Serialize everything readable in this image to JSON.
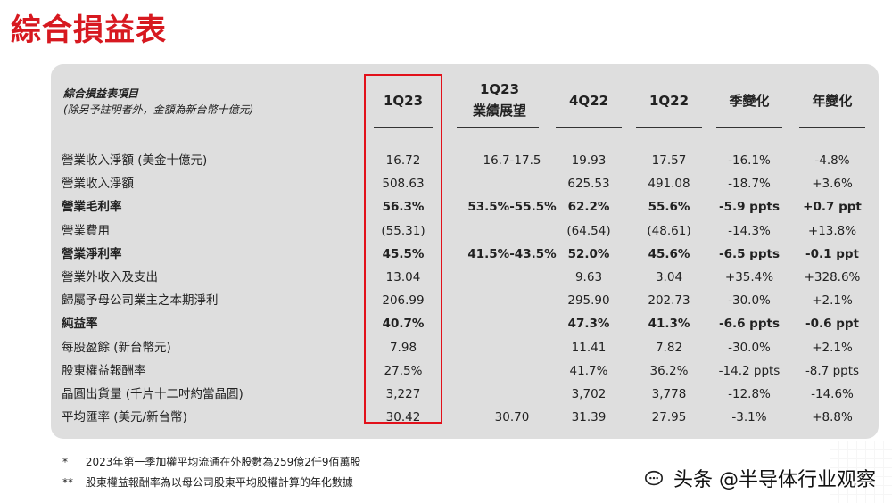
{
  "title": "綜合損益表",
  "header": {
    "label_line1": "綜合損益表項目",
    "label_line2": "(除另予註明者外，金額為新台幣十億元)",
    "columns": [
      {
        "line1": "1Q23",
        "line2": ""
      },
      {
        "line1": "1Q23",
        "line2": "業績展望"
      },
      {
        "line1": "4Q22",
        "line2": ""
      },
      {
        "line1": "1Q22",
        "line2": ""
      },
      {
        "line1": "季變化",
        "line2": ""
      },
      {
        "line1": "年變化",
        "line2": ""
      }
    ]
  },
  "rows": [
    {
      "label": "營業收入淨額 (美金十億元)",
      "bold": false,
      "cells": [
        "16.72",
        "16.7-17.5",
        "19.93",
        "17.57",
        "-16.1%",
        "-4.8%"
      ]
    },
    {
      "label": "營業收入淨額",
      "bold": false,
      "cells": [
        "508.63",
        "",
        "625.53",
        "491.08",
        "-18.7%",
        "+3.6%"
      ]
    },
    {
      "label": "營業毛利率",
      "bold": true,
      "cells": [
        "56.3%",
        "53.5%-55.5%",
        "62.2%",
        "55.6%",
        "-5.9 ppts",
        "+0.7 ppt"
      ]
    },
    {
      "label": "營業費用",
      "bold": false,
      "cells": [
        "(55.31)",
        "",
        "(64.54)",
        "(48.61)",
        "-14.3%",
        "+13.8%"
      ]
    },
    {
      "label": "營業淨利率",
      "bold": true,
      "cells": [
        "45.5%",
        "41.5%-43.5%",
        "52.0%",
        "45.6%",
        "-6.5 ppts",
        "-0.1 ppt"
      ]
    },
    {
      "label": "營業外收入及支出",
      "bold": false,
      "cells": [
        "13.04",
        "",
        "9.63",
        "3.04",
        "+35.4%",
        "+328.6%"
      ]
    },
    {
      "label": "歸屬予母公司業主之本期淨利",
      "bold": false,
      "cells": [
        "206.99",
        "",
        "295.90",
        "202.73",
        "-30.0%",
        "+2.1%"
      ]
    },
    {
      "label": "純益率",
      "bold": true,
      "cells": [
        "40.7%",
        "",
        "47.3%",
        "41.3%",
        "-6.6 ppts",
        "-0.6 ppt"
      ]
    },
    {
      "label": "每股盈餘 (新台幣元)",
      "bold": false,
      "cells": [
        "7.98",
        "",
        "11.41",
        "7.82",
        "-30.0%",
        "+2.1%"
      ]
    },
    {
      "label": "股東權益報酬率",
      "bold": false,
      "cells": [
        "27.5%",
        "",
        "41.7%",
        "36.2%",
        "-14.2 ppts",
        "-8.7 ppts"
      ]
    },
    {
      "label": "晶圓出貨量 (千片十二吋約當晶圓)",
      "bold": false,
      "cells": [
        "3,227",
        "",
        "3,702",
        "3,778",
        "-12.8%",
        "-14.6%"
      ]
    },
    {
      "label": "平均匯率 (美元/新台幣)",
      "bold": false,
      "cells": [
        "30.42",
        "30.70",
        "31.39",
        "27.95",
        "-3.1%",
        "+8.8%"
      ]
    }
  ],
  "footnotes": [
    {
      "mark": "*",
      "text": "2023年第一季加權平均流通在外股數為259億2仟9佰萬股"
    },
    {
      "mark": "**",
      "text": "股東權益報酬率為以母公司股東平均股權計算的年化數據"
    }
  ],
  "watermark": "头条 @半导体行业观察",
  "colors": {
    "title": "#d71920",
    "highlight_border": "#e2111b",
    "panel": "#dedede"
  }
}
